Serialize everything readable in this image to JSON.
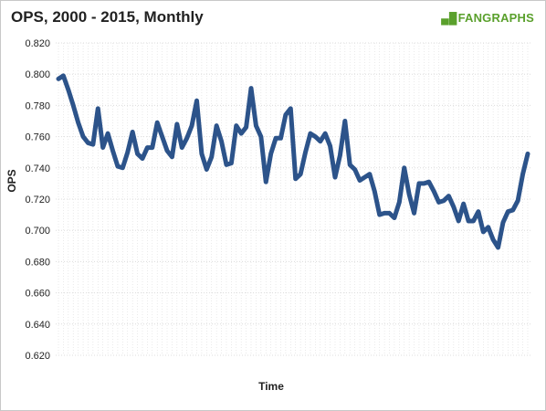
{
  "title": "OPS, 2000 - 2015, Monthly",
  "logo": {
    "mark": "▄█",
    "fan": "FAN",
    "graphs": "GRAPHS"
  },
  "colors": {
    "line": "#2c538a",
    "grid": "#dcdcdc",
    "logo_green": "#5aa02c"
  },
  "chart_data": {
    "type": "line",
    "title": "OPS, 2000 - 2015, Monthly",
    "xlabel": "Time",
    "ylabel": "OPS",
    "ylim": [
      0.62,
      0.82
    ],
    "ytick_labels": [
      "0.620",
      "0.640",
      "0.660",
      "0.680",
      "0.700",
      "0.720",
      "0.740",
      "0.760",
      "0.780",
      "0.800",
      "0.820"
    ],
    "grid": true,
    "series": [
      {
        "values": [
          0.797,
          0.799,
          0.79,
          0.78,
          0.769,
          0.76,
          0.756,
          0.755,
          0.778,
          0.753,
          0.762,
          0.751,
          0.741,
          0.74,
          0.75,
          0.763,
          0.749,
          0.746,
          0.753,
          0.753,
          0.769,
          0.76,
          0.751,
          0.747,
          0.768,
          0.753,
          0.759,
          0.767,
          0.783,
          0.749,
          0.739,
          0.747,
          0.767,
          0.757,
          0.742,
          0.743,
          0.767,
          0.762,
          0.766,
          0.791,
          0.767,
          0.76,
          0.731,
          0.749,
          0.759,
          0.759,
          0.774,
          0.778,
          0.733,
          0.736,
          0.75,
          0.762,
          0.76,
          0.757,
          0.762,
          0.754,
          0.734,
          0.748,
          0.77,
          0.742,
          0.739,
          0.732,
          0.734,
          0.736,
          0.725,
          0.71,
          0.711,
          0.711,
          0.708,
          0.718,
          0.74,
          0.723,
          0.711,
          0.73,
          0.73,
          0.731,
          0.725,
          0.718,
          0.719,
          0.722,
          0.715,
          0.706,
          0.717,
          0.706,
          0.706,
          0.712,
          0.699,
          0.702,
          0.694,
          0.689,
          0.705,
          0.712,
          0.713,
          0.719,
          0.736,
          0.749
        ]
      }
    ]
  }
}
